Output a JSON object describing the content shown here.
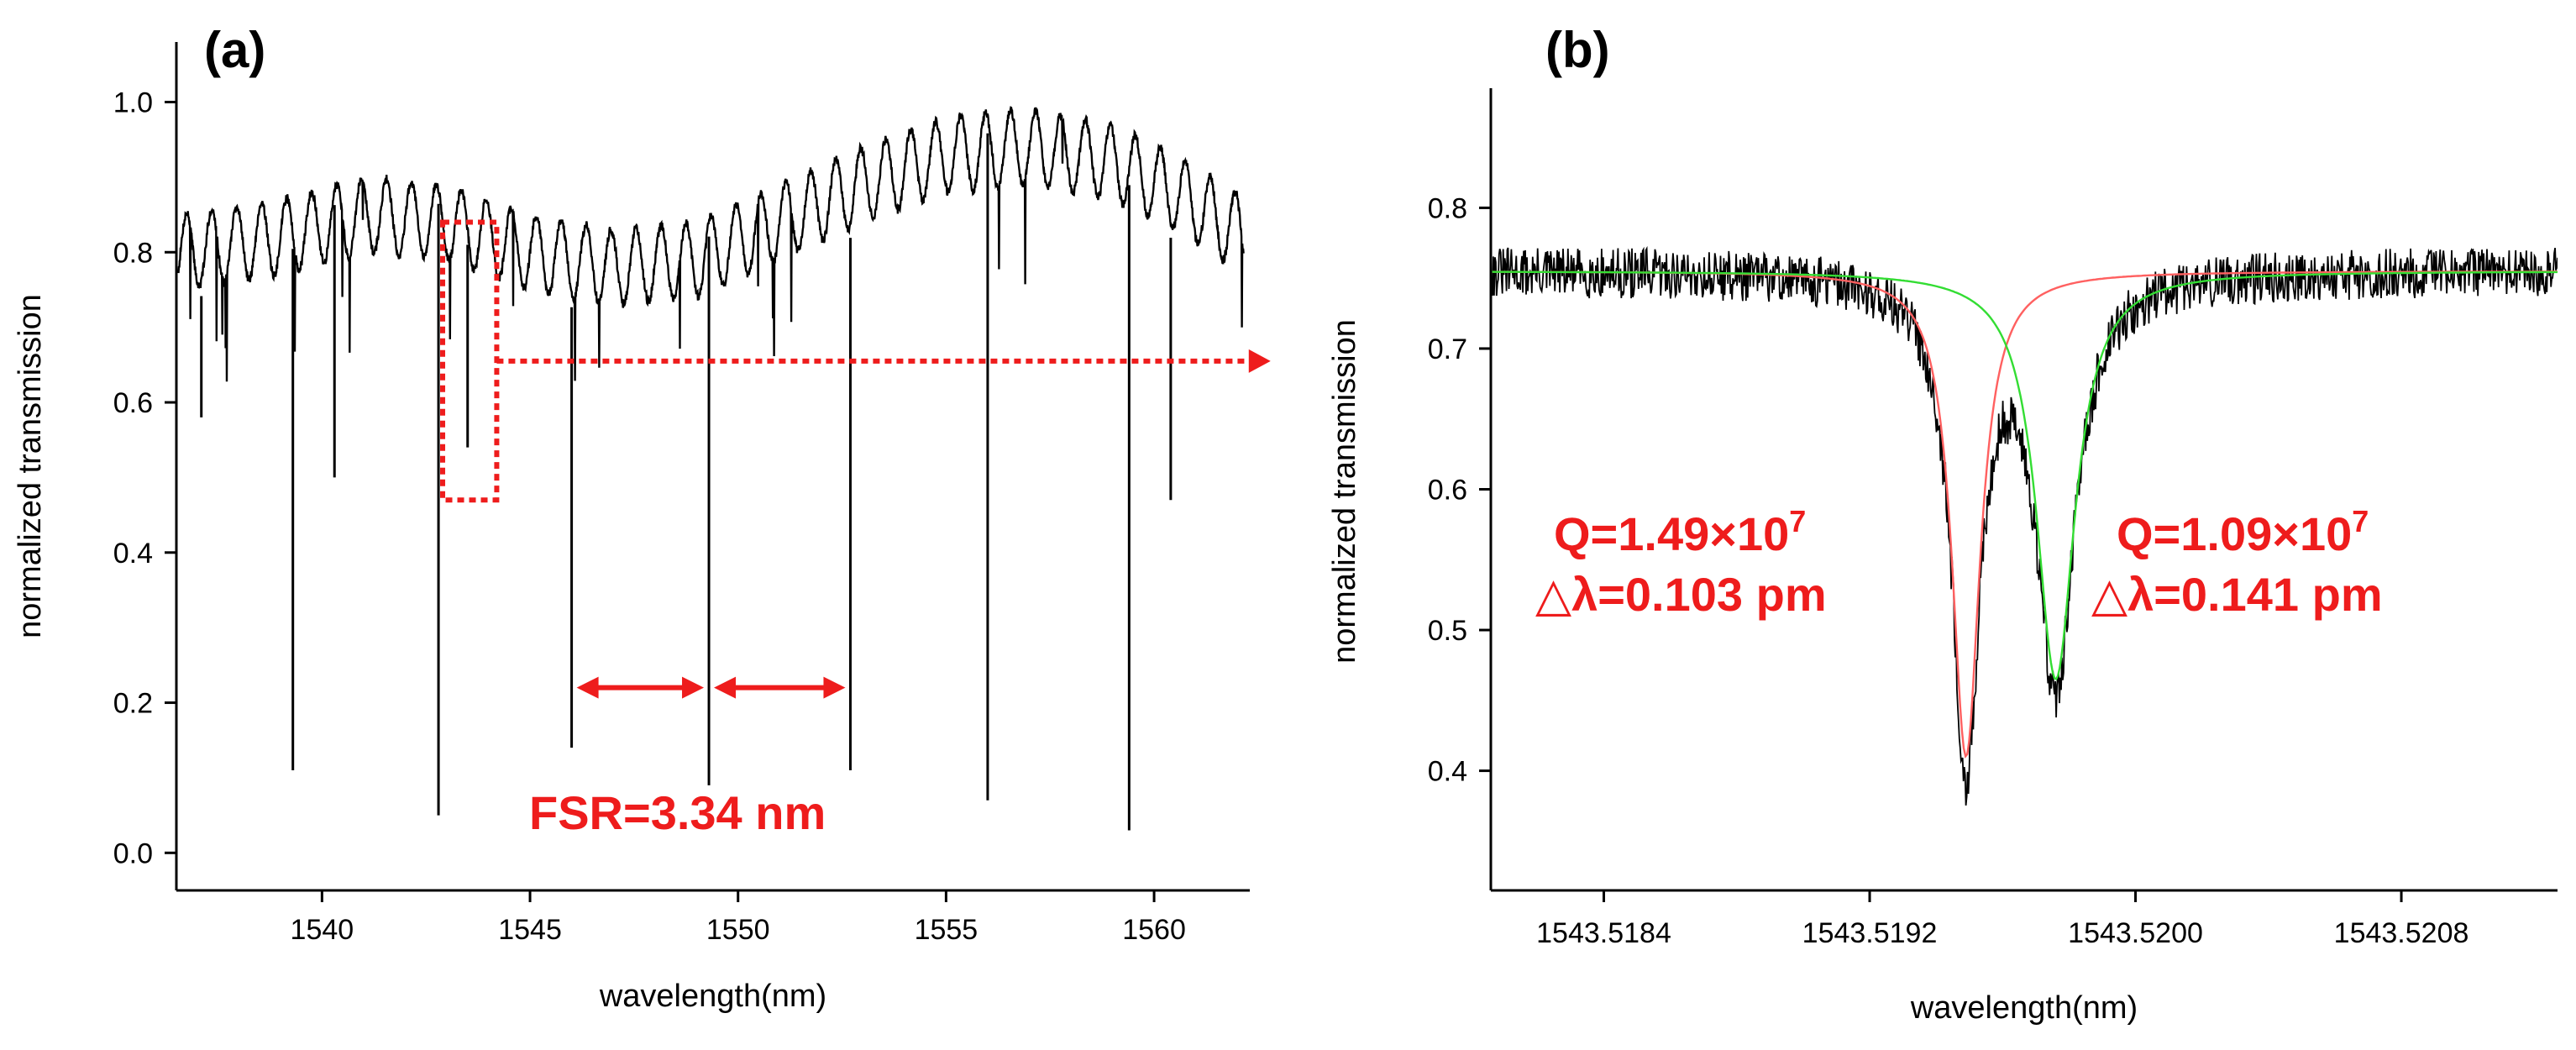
{
  "chart_data": [
    {
      "type": "line",
      "panel_label": "(a)",
      "xlabel": "wavelength(nm)",
      "ylabel": "normalized transmission",
      "xlim": [
        1536.5,
        1562.3
      ],
      "ylim": [
        -0.05,
        1.08
      ],
      "xticks": [
        1540,
        1545,
        1550,
        1555,
        1560
      ],
      "xtick_labels": [
        "1540",
        "1545",
        "1550",
        "1555",
        "1560"
      ],
      "yticks": [
        0.0,
        0.2,
        0.4,
        0.6,
        0.8,
        1.0
      ],
      "ytick_labels": [
        "0.0",
        "0.2",
        "0.4",
        "0.6",
        "0.8",
        "1.0"
      ],
      "grid": false,
      "series": [
        {
          "name": "transmission",
          "color": "#000000",
          "envelope": {
            "x": [
              1536.5,
              1539,
              1541,
              1543,
              1545,
              1547,
              1549,
              1551,
              1553,
              1555,
              1557,
              1559,
              1560.5,
              1562.2
            ],
            "y": [
              0.8,
              0.82,
              0.85,
              0.84,
              0.8,
              0.78,
              0.79,
              0.84,
              0.89,
              0.93,
              0.94,
              0.92,
              0.88,
              0.82
            ]
          },
          "ripple_period_nm": 0.6,
          "ripple_amplitude": 0.05,
          "dips": {
            "x": [
              1537.1,
              1539.3,
              1540.3,
              1542.8,
              1543.5,
              1546.0,
              1549.3,
              1552.7,
              1556.0,
              1559.4,
              1560.4
            ],
            "y": [
              0.58,
              0.11,
              0.5,
              0.05,
              0.54,
              0.14,
              0.09,
              0.11,
              0.07,
              0.03,
              0.47
            ]
          }
        }
      ],
      "annotations": {
        "fsr_label": "FSR=3.34 nm",
        "fsr_arrows": [
          {
            "from": 1546.0,
            "to": 1549.3,
            "y": 0.22
          },
          {
            "from": 1549.3,
            "to": 1552.7,
            "y": 0.22
          }
        ],
        "zoom_box": {
          "x": [
            1542.9,
            1544.2
          ],
          "y": [
            0.47,
            0.84
          ]
        },
        "zoom_arrow": {
          "from_x": 1544.2,
          "to_x": 1562.8,
          "y": 0.655
        },
        "color": "#ee1c1c"
      }
    },
    {
      "type": "line",
      "panel_label": "(b)",
      "xlabel": "wavelength(nm)",
      "ylabel": "normalized transmission",
      "xlim": [
        1543.51806,
        1543.52127
      ],
      "ylim": [
        0.315,
        0.885
      ],
      "xticks": [
        1543.5184,
        1543.5192,
        1543.52,
        1543.5208
      ],
      "xtick_labels": [
        "1543.5184",
        "1543.5192",
        "1543.5200",
        "1543.5208"
      ],
      "yticks": [
        0.4,
        0.5,
        0.6,
        0.7,
        0.8
      ],
      "ytick_labels": [
        "0.4",
        "0.5",
        "0.6",
        "0.7",
        "0.8"
      ],
      "grid": false,
      "series": [
        {
          "name": "measured",
          "color": "#000000",
          "baseline": 0.755,
          "noise": 0.018
        },
        {
          "name": "fit 1",
          "color": "#ff6060",
          "type": "lorentzian",
          "center": 1543.51949,
          "fwhm": 0.000103,
          "baseline": 0.755,
          "depth": 0.345
        },
        {
          "name": "fit 2",
          "color": "#33dd33",
          "type": "lorentzian",
          "center": 1543.51976,
          "fwhm": 0.000141,
          "baseline": 0.755,
          "depth": 0.29
        }
      ],
      "annotations": {
        "color": "#ee1c1c",
        "left": {
          "q_prefix": "Q=1.49×10",
          "q_exp": "7",
          "dl": "△λ=0.103 pm"
        },
        "right": {
          "q_prefix": "Q=1.09×10",
          "q_exp": "7",
          "dl": "△λ=0.141 pm"
        }
      }
    }
  ]
}
